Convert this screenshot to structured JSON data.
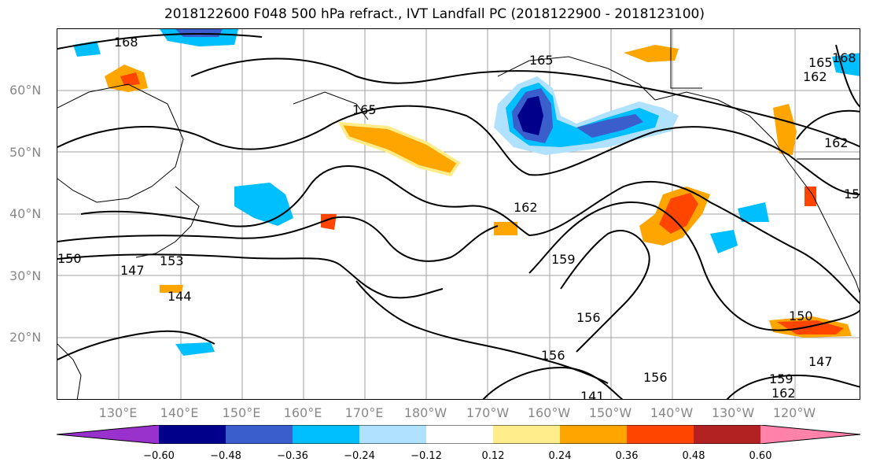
{
  "title": "2018122600 F048 500 hPa refract., IVT Landfall PC (2018122900 - 2018123100)",
  "lat_labels": [
    "60°N",
    "50°N",
    "40°N",
    "30°N",
    "20°N"
  ],
  "lon_labels": [
    "130°E",
    "140°E",
    "150°E",
    "160°E",
    "170°E",
    "180°W",
    "170°W",
    "160°W",
    "150°W",
    "140°W",
    "130°W",
    "120°W"
  ],
  "contour_labels": [
    "168",
    "165",
    "165",
    "162",
    "162",
    "159",
    "156",
    "156",
    "153",
    "150",
    "147",
    "144",
    "141",
    "168",
    "165",
    "162",
    "159",
    "150",
    "147",
    "162",
    "159",
    "156"
  ],
  "colorbar": {
    "colors": [
      "#9932cc",
      "#00008b",
      "#3a5fcd",
      "#00bfff",
      "#b0e2ff",
      "#ffffff",
      "#ffec8b",
      "#ffa500",
      "#ff4500",
      "#b22222",
      "#ff82ab"
    ],
    "ticks": [
      "−0.60",
      "−0.48",
      "−0.36",
      "−0.24",
      "−0.12",
      "0.12",
      "0.24",
      "0.36",
      "0.48",
      "0.60"
    ]
  }
}
